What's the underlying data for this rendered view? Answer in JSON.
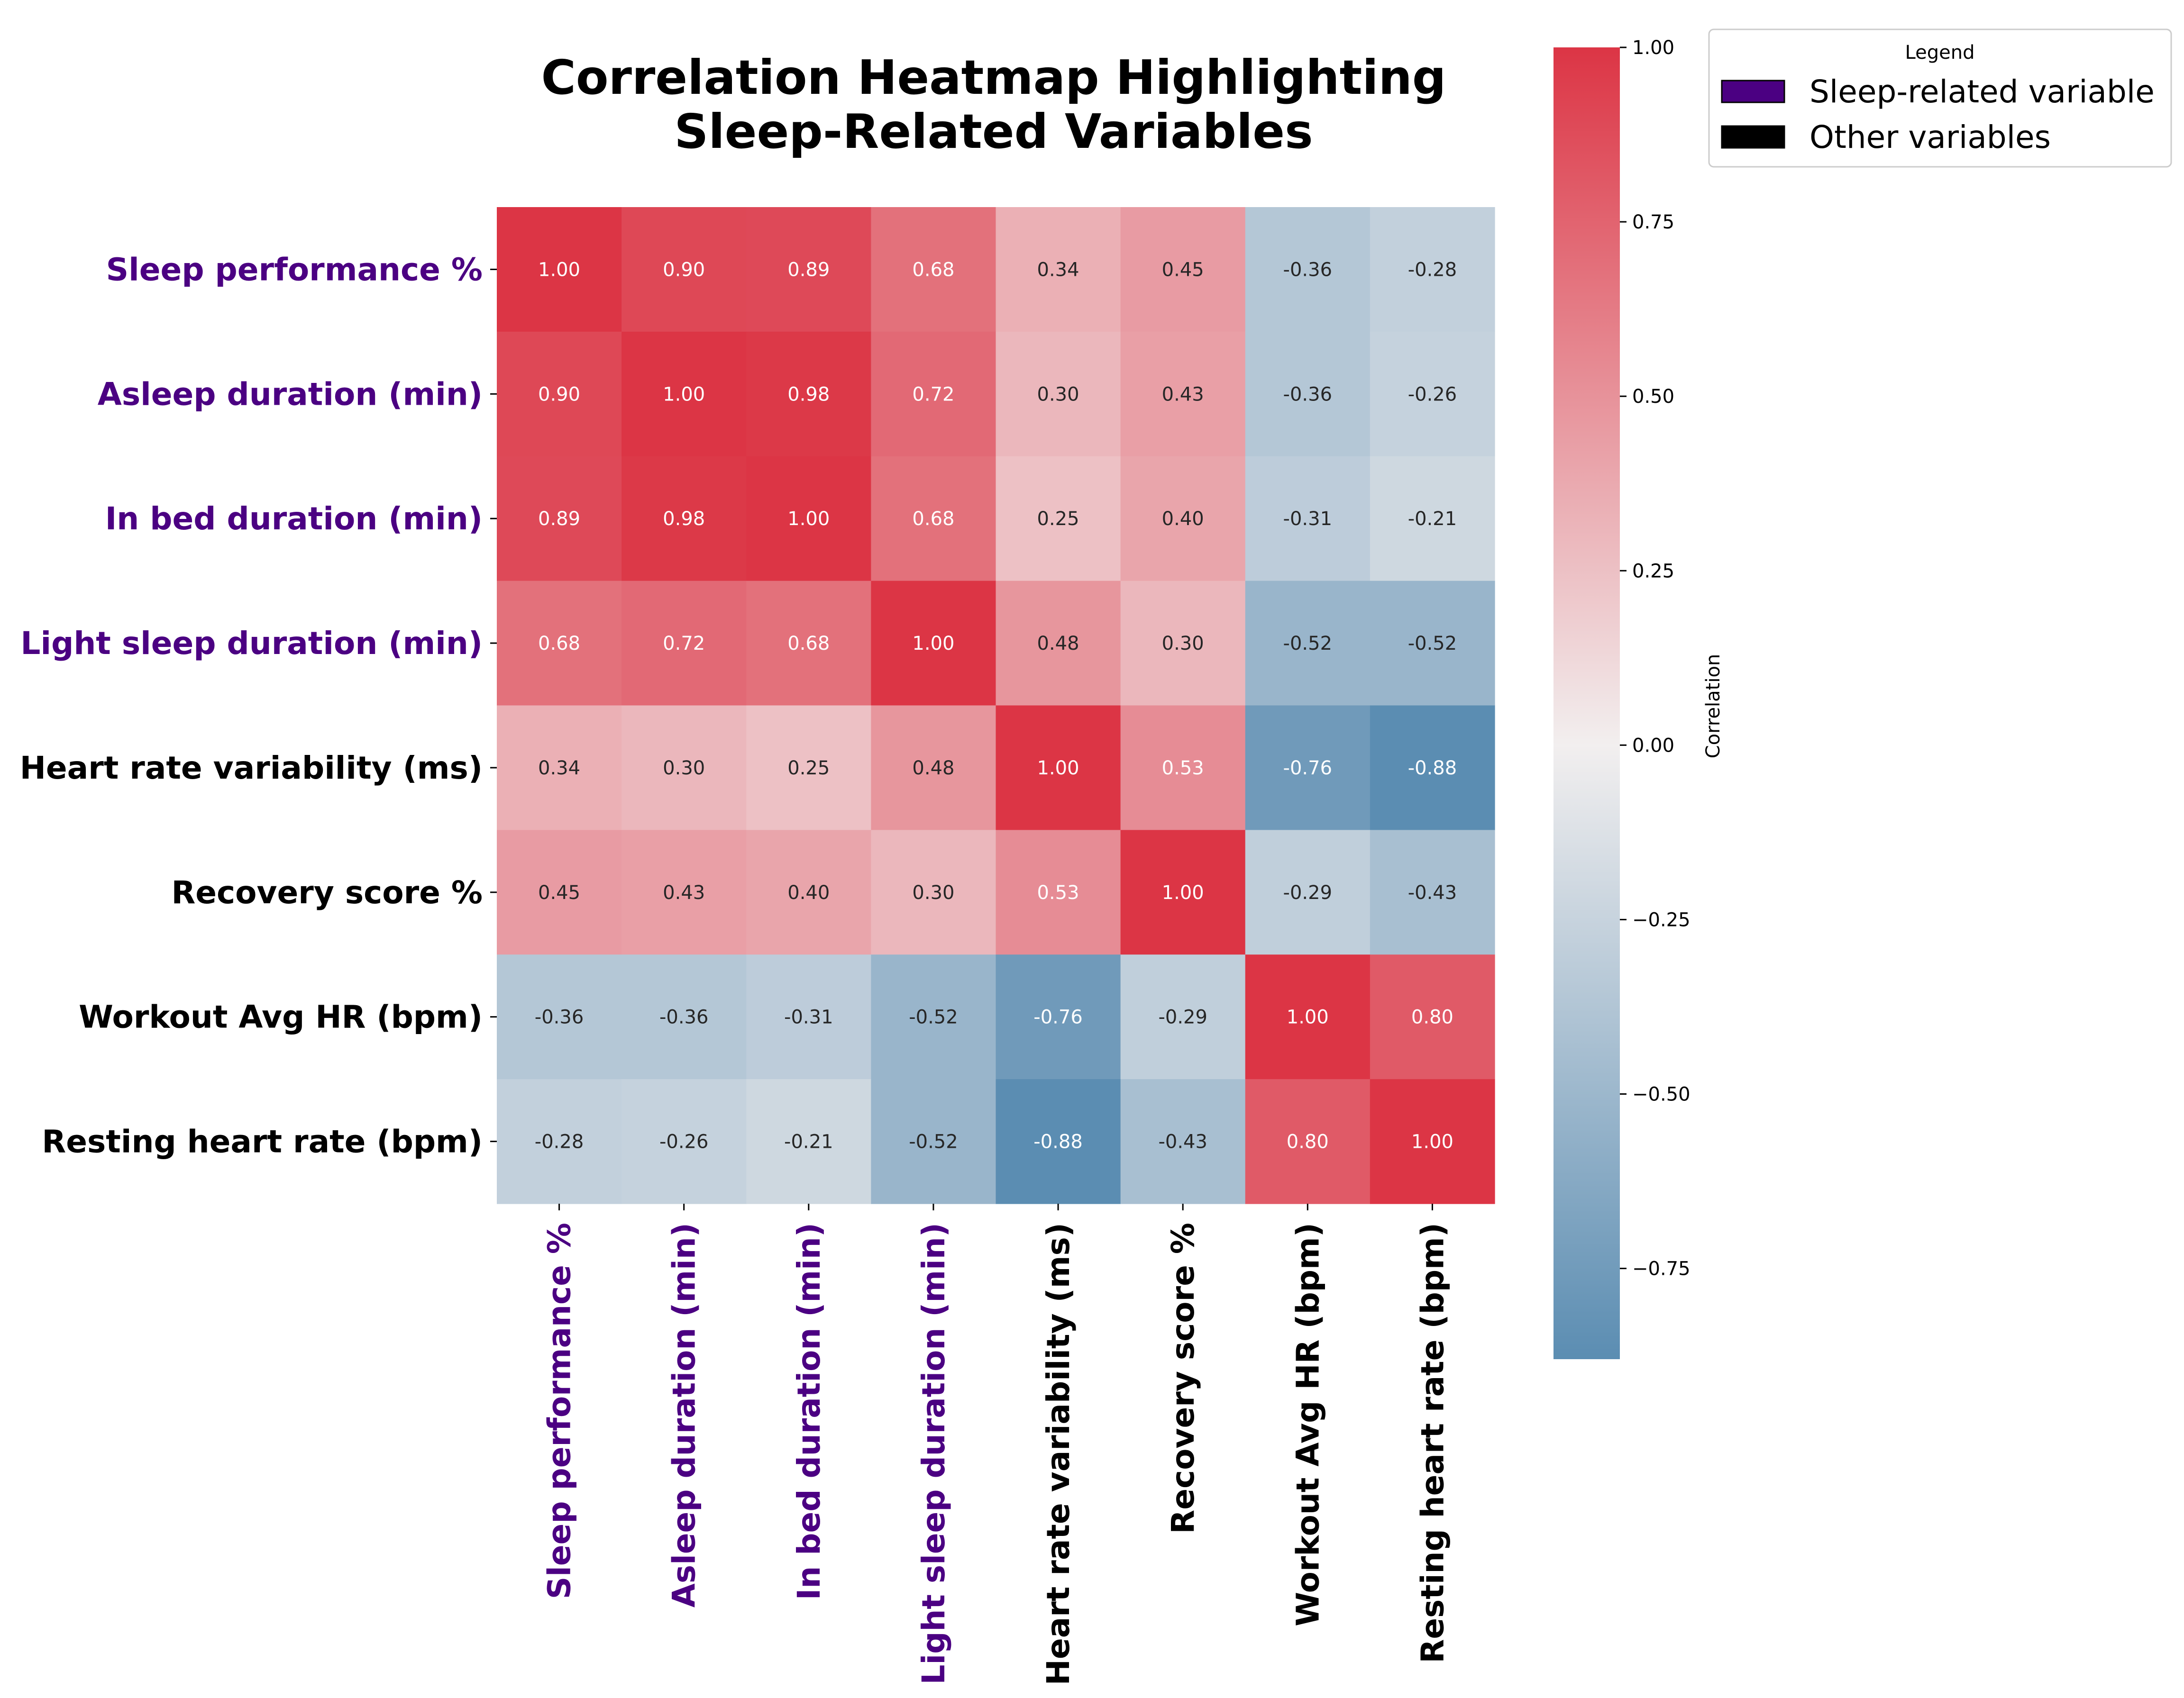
{
  "chart_data": {
    "type": "heatmap",
    "title_lines": [
      "Correlation Heatmap Highlighting",
      "Sleep-Related Variables"
    ],
    "variables": [
      "Sleep performance %",
      "Asleep duration (min)",
      "In bed duration (min)",
      "Light sleep duration (min)",
      "Heart rate variability (ms)",
      "Recovery score %",
      "Workout Avg HR (bpm)",
      "Resting heart rate (bpm)"
    ],
    "sleep_related": [
      true,
      true,
      true,
      true,
      false,
      false,
      false,
      false
    ],
    "matrix": [
      [
        1.0,
        0.9,
        0.89,
        0.68,
        0.34,
        0.45,
        -0.36,
        -0.28
      ],
      [
        0.9,
        1.0,
        0.98,
        0.72,
        0.3,
        0.43,
        -0.36,
        -0.26
      ],
      [
        0.89,
        0.98,
        1.0,
        0.68,
        0.25,
        0.4,
        -0.31,
        -0.21
      ],
      [
        0.68,
        0.72,
        0.68,
        1.0,
        0.48,
        0.3,
        -0.52,
        -0.52
      ],
      [
        0.34,
        0.3,
        0.25,
        0.48,
        1.0,
        0.53,
        -0.76,
        -0.88
      ],
      [
        0.45,
        0.43,
        0.4,
        0.3,
        0.53,
        1.0,
        -0.29,
        -0.43
      ],
      [
        -0.36,
        -0.36,
        -0.31,
        -0.52,
        -0.76,
        -0.29,
        1.0,
        0.8
      ],
      [
        -0.28,
        -0.26,
        -0.21,
        -0.52,
        -0.88,
        -0.43,
        0.8,
        1.0
      ]
    ],
    "color_range": [
      -0.88,
      1.0
    ],
    "colors": {
      "negative": "#5b8db2",
      "neutral": "#f2efef",
      "positive": "#dc3545",
      "sleep_label": "#4b0082",
      "other_label": "#000000"
    },
    "colorbar": {
      "label": "Correlation",
      "ticks": [
        1.0,
        0.75,
        0.5,
        0.25,
        0.0,
        -0.25,
        -0.5,
        -0.75
      ],
      "tick_labels": [
        "1.00",
        "0.75",
        "0.50",
        "0.25",
        "0.00",
        "−0.25",
        "−0.50",
        "−0.75"
      ]
    },
    "legend": {
      "title": "Legend",
      "placement": "upper-right-outside",
      "entries": [
        {
          "label": "Sleep-related variable",
          "color": "#4b0082"
        },
        {
          "label": "Other variables",
          "color": "#000000"
        }
      ]
    }
  }
}
